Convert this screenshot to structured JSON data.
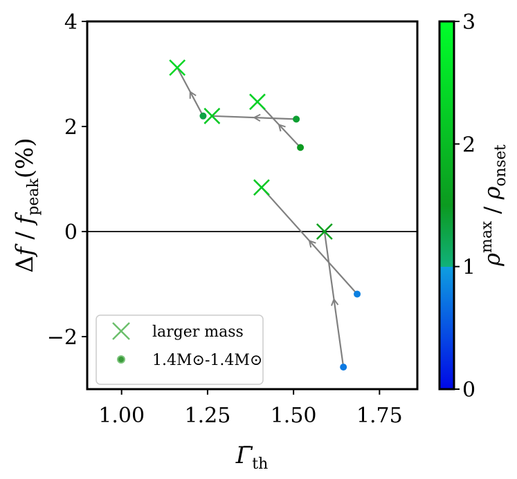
{
  "chart_data": {
    "type": "scatter",
    "xlabel": "Γ̄th",
    "ylabel": "Δf / fpeak(%)",
    "xlim": [
      0.9,
      1.86
    ],
    "ylim": [
      -3.0,
      4.0
    ],
    "xticks": [
      "1.00",
      "1.25",
      "1.50",
      "1.75"
    ],
    "xtick_values": [
      1.0,
      1.25,
      1.5,
      1.75
    ],
    "yticks": [
      "−2",
      "0",
      "2",
      "4"
    ],
    "ytick_values": [
      -2,
      0,
      2,
      4
    ],
    "hline_y": 0,
    "grid": false,
    "legend_position": "lower-left",
    "legend": [
      {
        "label": "larger mass",
        "marker": "x"
      },
      {
        "label": "1.4M⊙-1.4M⊙",
        "marker": "dot"
      }
    ],
    "colorbar": {
      "label": "ρmax / ρonset",
      "ticks": [
        "0",
        "1",
        "2",
        "3"
      ],
      "tick_values": [
        0,
        1,
        2,
        3
      ],
      "range": [
        0,
        3
      ]
    },
    "pairs": [
      {
        "dot": {
          "x": 1.508,
          "y": 2.14,
          "rho": 1.4
        },
        "cross": {
          "x": 1.263,
          "y": 2.2,
          "rho": 2.2
        }
      },
      {
        "dot": {
          "x": 1.52,
          "y": 1.6,
          "rho": 1.5
        },
        "cross": {
          "x": 1.395,
          "y": 2.47,
          "rho": 2.3
        }
      },
      {
        "dot": {
          "x": 1.237,
          "y": 2.2,
          "rho": 1.3
        },
        "cross": {
          "x": 1.162,
          "y": 3.12,
          "rho": 2.4
        }
      },
      {
        "dot": {
          "x": 1.685,
          "y": -1.19,
          "rho": 0.8
        },
        "cross": {
          "x": 1.407,
          "y": 0.84,
          "rho": 2.2
        }
      },
      {
        "dot": {
          "x": 1.645,
          "y": -2.58,
          "rho": 0.75
        },
        "cross": {
          "x": 1.59,
          "y": 0.0,
          "rho": 1.6
        }
      }
    ],
    "colors": {
      "arrow": "#808080",
      "axes": "#000000"
    }
  }
}
